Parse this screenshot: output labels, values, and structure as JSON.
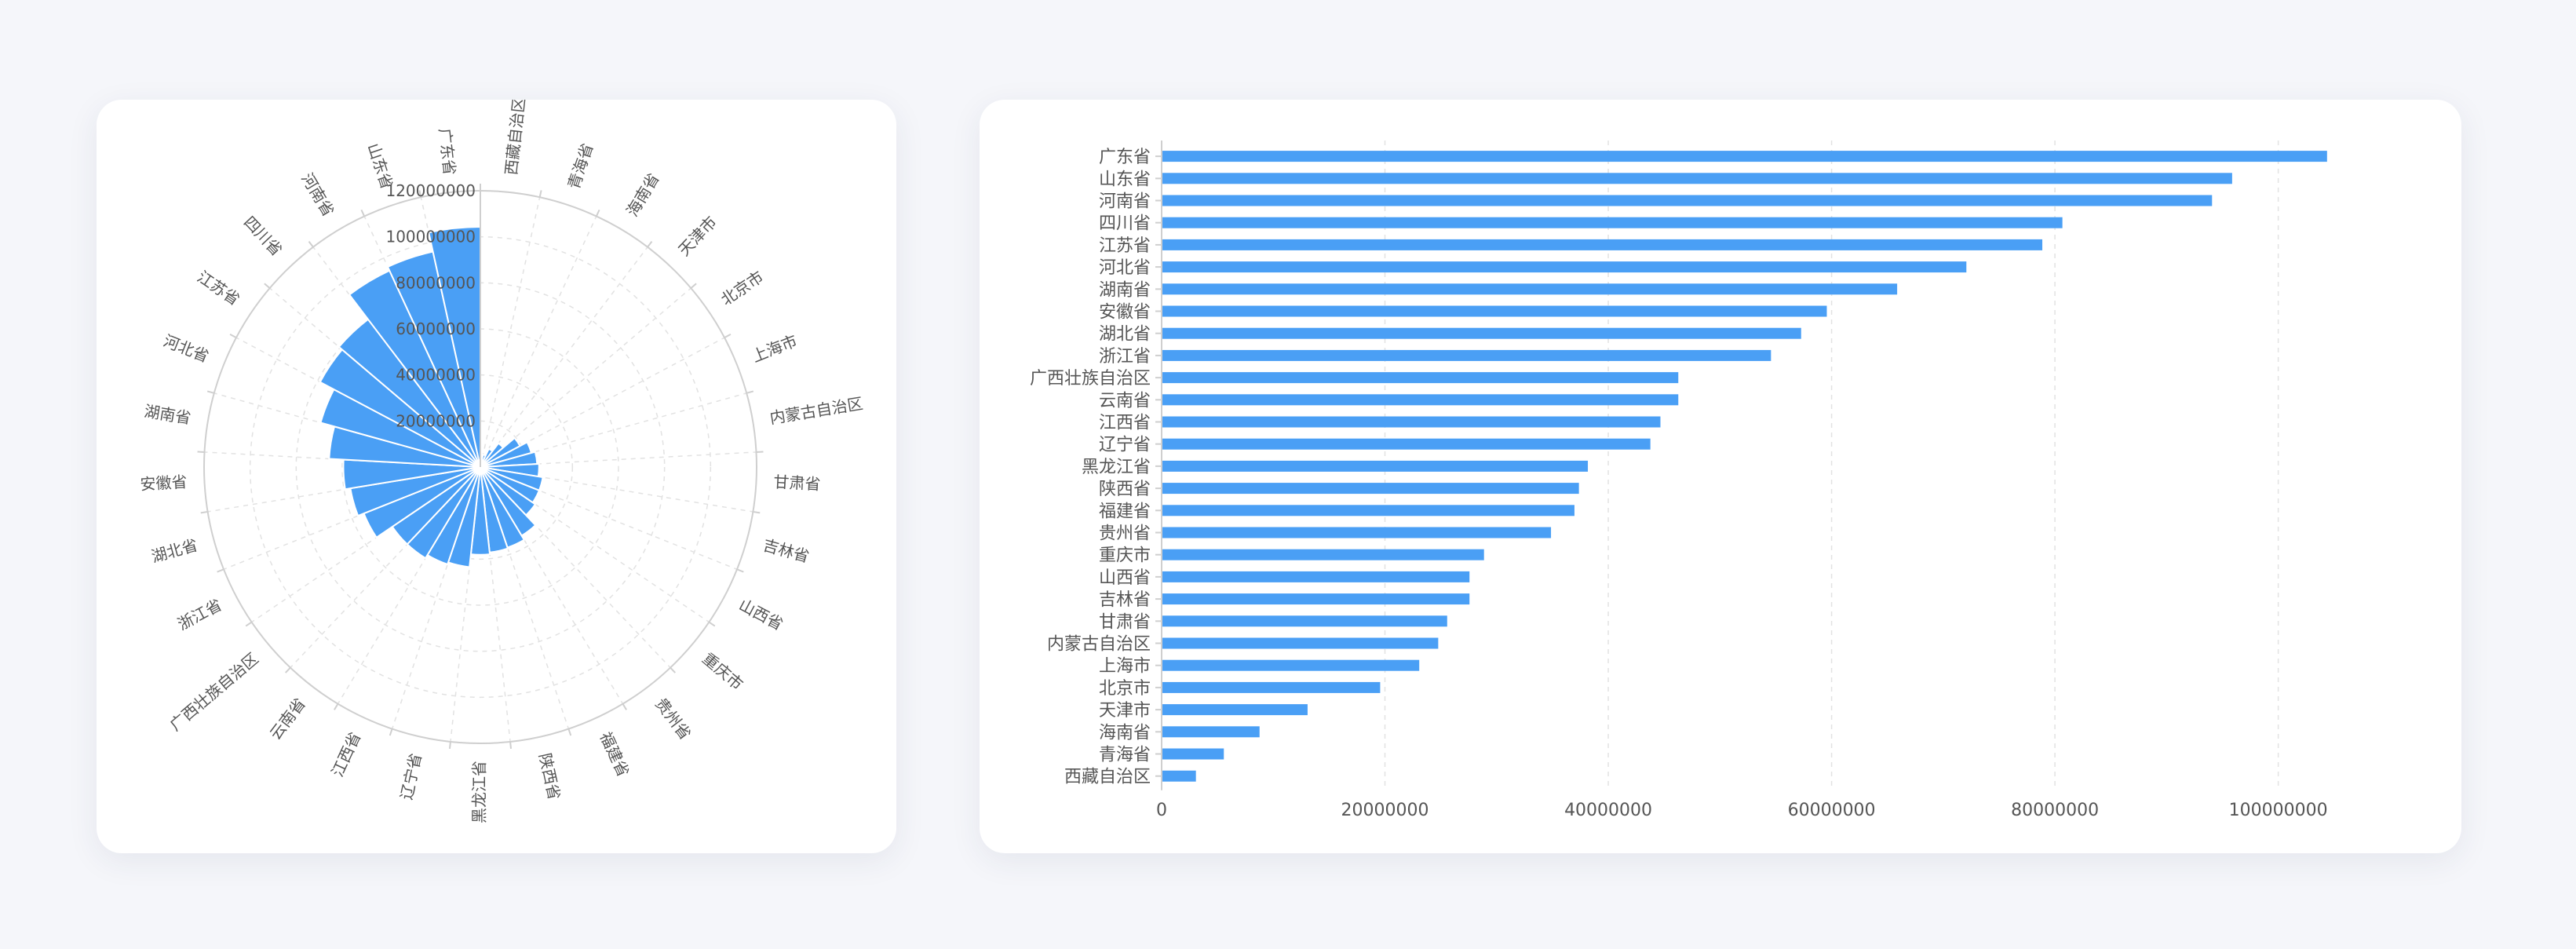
{
  "colors": {
    "bar": "#4a9ff5",
    "axis": "#cfcfcf",
    "grid": "#e2e2e2",
    "text": "#555555"
  },
  "chart_data": [
    {
      "type": "bar",
      "polar": true,
      "categories": [
        "西藏自治区",
        "青海省",
        "海南省",
        "天津市",
        "北京市",
        "上海市",
        "内蒙古自治区",
        "甘肃省",
        "吉林省",
        "山西省",
        "重庆市",
        "贵州省",
        "福建省",
        "陕西省",
        "黑龙江省",
        "辽宁省",
        "江西省",
        "云南省",
        "广西壮族自治区",
        "浙江省",
        "湖北省",
        "安徽省",
        "湖南省",
        "河北省",
        "江苏省",
        "四川省",
        "河南省",
        "山东省",
        "广东省"
      ],
      "values": [
        3000000,
        5500000,
        8700000,
        13000000,
        19500000,
        23000000,
        24700000,
        25500000,
        27500000,
        27500000,
        28800000,
        34800000,
        36900000,
        37300000,
        38100000,
        43700000,
        44600000,
        46200000,
        46200000,
        54500000,
        57200000,
        59500000,
        65800000,
        72000000,
        78800000,
        80600000,
        94000000,
        95800000,
        104300000
      ],
      "radial_axis": {
        "min": 0,
        "max": 120000000,
        "ticks": [
          "0",
          "20000000",
          "40000000",
          "60000000",
          "80000000",
          "100000000",
          "120000000"
        ]
      }
    },
    {
      "type": "bar",
      "orientation": "horizontal",
      "categories": [
        "广东省",
        "山东省",
        "河南省",
        "四川省",
        "江苏省",
        "河北省",
        "湖南省",
        "安徽省",
        "湖北省",
        "浙江省",
        "广西壮族自治区",
        "云南省",
        "江西省",
        "辽宁省",
        "黑龙江省",
        "陕西省",
        "福建省",
        "贵州省",
        "重庆市",
        "山西省",
        "吉林省",
        "甘肃省",
        "内蒙古自治区",
        "上海市",
        "北京市",
        "天津市",
        "海南省",
        "青海省",
        "西藏自治区"
      ],
      "values": [
        104300000,
        95800000,
        94000000,
        80600000,
        78800000,
        72000000,
        65800000,
        59500000,
        57200000,
        54500000,
        46200000,
        46200000,
        44600000,
        43700000,
        38100000,
        37300000,
        36900000,
        34800000,
        28800000,
        27500000,
        27500000,
        25500000,
        24700000,
        23000000,
        19500000,
        13000000,
        8700000,
        5500000,
        3000000
      ],
      "x_axis": {
        "min": 0,
        "max": 106000000,
        "ticks": [
          "0",
          "20000000",
          "40000000",
          "60000000",
          "80000000",
          "100000000"
        ]
      },
      "grid": "vertical dashed"
    }
  ]
}
